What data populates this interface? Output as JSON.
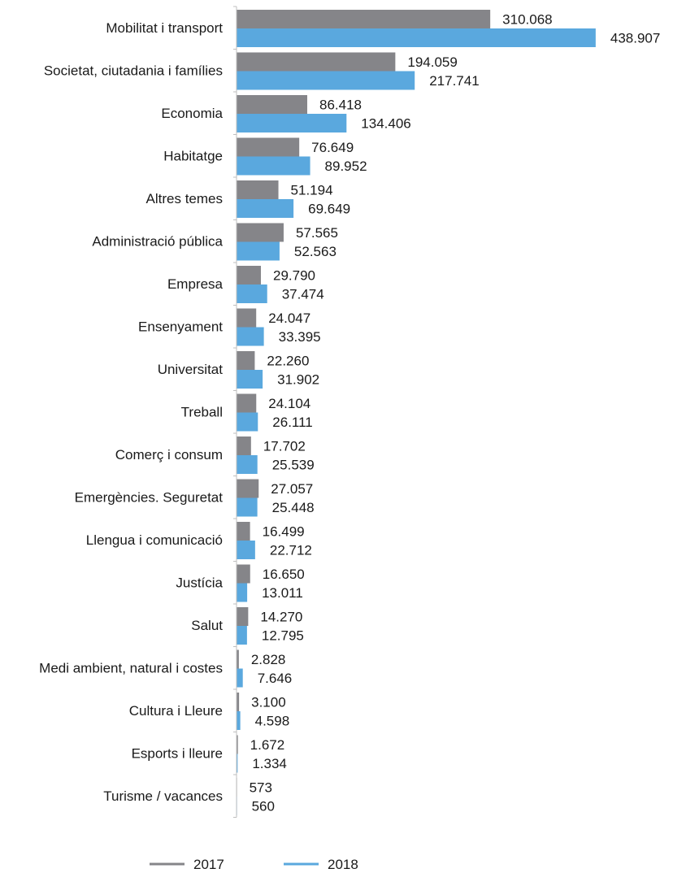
{
  "chart_data": {
    "type": "bar",
    "orientation": "horizontal",
    "categories": [
      "Mobilitat i transport",
      "Societat, ciutadania i famílies",
      "Economia",
      "Habitatge",
      "Altres temes",
      "Administració pública",
      "Empresa",
      "Ensenyament",
      "Universitat",
      "Treball",
      "Comerç i consum",
      "Emergències. Seguretat",
      "Llengua i comunicació",
      "Justícia",
      "Salut",
      "Medi ambient, natural i costes",
      "Cultura i Lleure",
      "Esports i lleure",
      "Turisme / vacances"
    ],
    "series": [
      {
        "name": "2017",
        "color": "#858589",
        "values": [
          310068,
          194059,
          86418,
          76649,
          51194,
          57565,
          29790,
          24047,
          22260,
          24104,
          17702,
          27057,
          16499,
          16650,
          14270,
          2828,
          3100,
          1672,
          573
        ],
        "labels": [
          "310.068",
          "194.059",
          "86.418",
          "76.649",
          "51.194",
          "57.565",
          "29.790",
          "24.047",
          "22.260",
          "24.104",
          "17.702",
          "27.057",
          "16.499",
          "16.650",
          "14.270",
          "2.828",
          "3.100",
          "1.672",
          "573"
        ]
      },
      {
        "name": "2018",
        "color": "#5aa8de",
        "values": [
          438907,
          217741,
          134406,
          89952,
          69649,
          52563,
          37474,
          33395,
          31902,
          26111,
          25539,
          25448,
          22712,
          13011,
          12795,
          7646,
          4598,
          1334,
          560
        ],
        "labels": [
          "438.907",
          "217.741",
          "134.406",
          "89.952",
          "69.649",
          "52.563",
          "37.474",
          "33.395",
          "31.902",
          "26.111",
          "25.539",
          "25.448",
          "22.712",
          "13.011",
          "12.795",
          "7.646",
          "4.598",
          "1.334",
          "560"
        ]
      }
    ],
    "xlim": [
      0,
      445000
    ],
    "grid": false,
    "legend_position": "bottom-center",
    "axis_color": "#bfbfbf"
  }
}
